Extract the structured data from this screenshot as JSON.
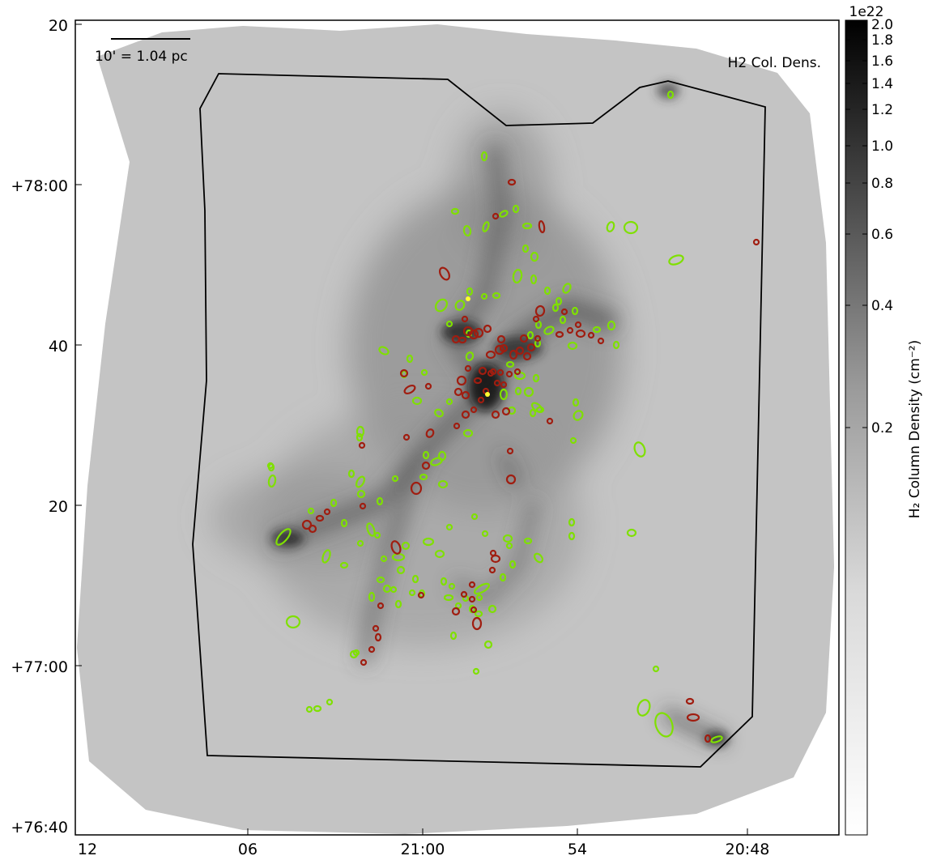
{
  "image": {
    "description_label": "H2 Col. Dens.",
    "scalebar_label": "10' = 1.04 pc"
  },
  "axes": {
    "x_ticks": [
      "12",
      "06",
      "21:00",
      "54",
      "20:48"
    ],
    "y_ticks": [
      "20",
      "+78:00",
      "40",
      "20",
      "+77:00",
      "+76:40"
    ]
  },
  "colorbar": {
    "exponent": "1e22",
    "ticks": [
      "2.0",
      "1.8",
      "1.6",
      "1.4",
      "1.2",
      "1.0",
      "0.8",
      "0.6",
      "0.4",
      "0.2"
    ],
    "label": "H₂ Column Density (cm⁻²)"
  },
  "colors": {
    "green_source": "#7fe000",
    "red_source": "#a01d10",
    "yellow_source": "#ffff30",
    "footprint": "#000000"
  }
}
